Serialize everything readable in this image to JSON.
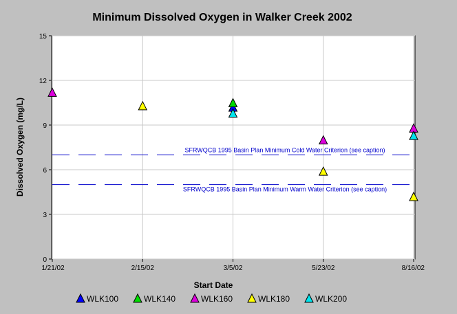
{
  "chart_data": {
    "type": "scatter",
    "title": "Minimum Dissolved Oxygen in Walker Creek 2002",
    "xlabel": "Start Date",
    "ylabel": "Dissolved Oxygen (mg/L)",
    "x_categories": [
      "1/21/02",
      "2/15/02",
      "3/5/02",
      "5/23/02",
      "8/16/02"
    ],
    "y_ticks": [
      "0",
      "3",
      "6",
      "9",
      "12",
      "15"
    ],
    "ylim": [
      0,
      15
    ],
    "grid": true,
    "legend_position": "bottom",
    "series": [
      {
        "name": "WLK100",
        "color": "#0000ff",
        "points": [
          {
            "x": "3/5/02",
            "y": 10.2
          }
        ]
      },
      {
        "name": "WLK140",
        "color": "#00dd00",
        "points": [
          {
            "x": "3/5/02",
            "y": 10.5
          }
        ]
      },
      {
        "name": "WLK160",
        "color": "#dd00dd",
        "points": [
          {
            "x": "1/21/02",
            "y": 11.2
          },
          {
            "x": "5/23/02",
            "y": 8.0
          },
          {
            "x": "8/16/02",
            "y": 8.8
          }
        ]
      },
      {
        "name": "WLK180",
        "color": "#ffff00",
        "points": [
          {
            "x": "2/15/02",
            "y": 10.3
          },
          {
            "x": "5/23/02",
            "y": 5.9
          },
          {
            "x": "8/16/02",
            "y": 4.2
          }
        ]
      },
      {
        "name": "WLK200",
        "color": "#00e5ee",
        "points": [
          {
            "x": "3/5/02",
            "y": 9.8
          },
          {
            "x": "8/16/02",
            "y": 8.3
          }
        ]
      }
    ],
    "reference_lines": [
      {
        "y": 7,
        "label": "SFRWQCB 1995 Basin Plan Minimum Cold Water Criterion (see caption)",
        "color": "#0000cc"
      },
      {
        "y": 5,
        "label": "SFRWQCB 1995 Basin Plan Minimum Warm Water Criterion (see caption)",
        "color": "#0000cc"
      }
    ]
  }
}
